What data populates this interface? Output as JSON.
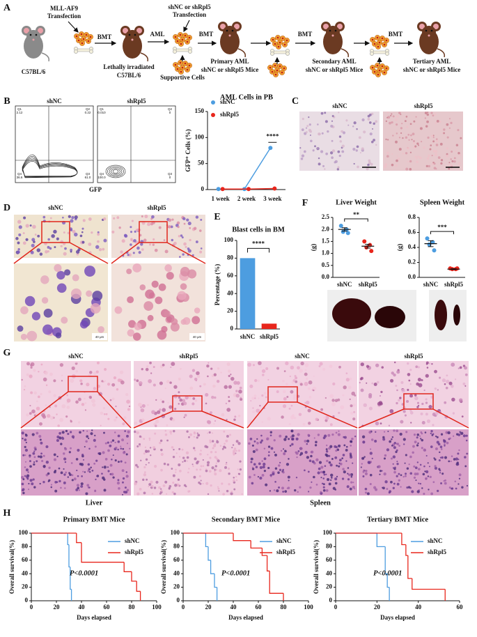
{
  "panel_labels": [
    "A",
    "B",
    "C",
    "D",
    "E",
    "F",
    "G",
    "H"
  ],
  "schematic": {
    "transfection1": [
      "MLL-AF9",
      "Transfection"
    ],
    "mouse1": "C57BL/6",
    "bmt1": "BMT",
    "mouse2": [
      "Lethally irradiated",
      "C57BL/6"
    ],
    "aml": "AML",
    "transfection2": [
      "shNC or shRpl5",
      "Transfection"
    ],
    "supportive": "Supportive Cells",
    "bmt2": "BMT",
    "primary": [
      "Primary AML",
      "shNC or shRpl5 Mice"
    ],
    "bmt3": "BMT",
    "secondary": [
      "Secondary AML",
      "shNC or shRpl5 Mice"
    ],
    "bmt4": "BMT",
    "tertiary": [
      "Tertiary AML",
      "shNC or shRpl5 Mice"
    ]
  },
  "flow": {
    "x_label": "GFP",
    "groups": [
      {
        "name": "shNC",
        "quadrants": [
          "Q1",
          "2.12",
          "Q2",
          "0.22",
          "Q4",
          "36.6",
          "Q3",
          "61.0"
        ]
      },
      {
        "name": "shRpl5",
        "quadrants": [
          "Q1",
          "0.010",
          "Q2",
          "0",
          "Q4",
          "100.0",
          "Q3",
          "0"
        ]
      }
    ]
  },
  "images": {
    "C": [
      "shNC",
      "shRpl5"
    ],
    "D": [
      "shNC",
      "shRpl5"
    ],
    "scale": "40 μm",
    "G": [
      "shNC",
      "shRpl5",
      "shNC",
      "shRpl5"
    ],
    "tissues": [
      "Liver",
      "Spleen"
    ]
  },
  "chart_data": [
    {
      "type": "line",
      "title": "AML Cells in PB",
      "y_label": "GFP⁺ Cells (%)",
      "categories": [
        "1 week",
        "2 week",
        "3 week"
      ],
      "series": [
        {
          "name": "shNC",
          "color": "#4d9de0",
          "values": [
            1,
            1,
            80
          ]
        },
        {
          "name": "shRpl5",
          "color": "#e8261c",
          "values": [
            1,
            1,
            2
          ]
        }
      ],
      "ylim": [
        0,
        150
      ],
      "yticks": [
        0,
        50,
        100,
        150
      ],
      "annotation": "****"
    },
    {
      "type": "bar",
      "title": "Blast cells in BM",
      "y_label": "Percentage (%)",
      "categories": [
        "shNC",
        "shRpl5"
      ],
      "values": [
        80,
        6
      ],
      "colors": [
        "#4d9de0",
        "#e8261c"
      ],
      "ylim": [
        0,
        100
      ],
      "yticks": [
        0,
        20,
        40,
        60,
        80,
        100
      ],
      "annotation": "****"
    },
    {
      "type": "dot",
      "title": "Liver Weight",
      "y_label": "(g)",
      "categories": [
        "shNC",
        "shRpl5"
      ],
      "colors": [
        "#4d9de0",
        "#e8261c"
      ],
      "points": [
        [
          2.15,
          2.0,
          1.9,
          1.85
        ],
        [
          1.5,
          1.35,
          1.25,
          1.1
        ]
      ],
      "means": [
        2.0,
        1.3
      ],
      "errors": [
        0.07,
        0.08
      ],
      "ylim": [
        0,
        2.5
      ],
      "yticks": [
        {
          "value": 0,
          "label": "0.0"
        },
        0.5,
        {
          "value": 1,
          "label": "1.0"
        },
        1.5,
        {
          "value": 2,
          "label": "2.0"
        },
        2.5
      ],
      "annotation": "**"
    },
    {
      "type": "dot",
      "title": "Spleen Weight",
      "y_label": "(g)",
      "categories": [
        "shNC",
        "shRpl5"
      ],
      "colors": [
        "#4d9de0",
        "#e8261c"
      ],
      "points": [
        [
          0.52,
          0.47,
          0.44,
          0.36
        ],
        [
          0.12,
          0.11,
          0.11,
          0.12
        ]
      ],
      "means": [
        0.45,
        0.11
      ],
      "errors": [
        0.04,
        0.005
      ],
      "ylim": [
        0,
        0.8
      ],
      "yticks": [
        {
          "value": 0,
          "label": "0.0"
        },
        0.2,
        0.4,
        0.6,
        0.8
      ],
      "annotation": "***"
    },
    {
      "type": "step",
      "title": "Primary BMT Mice",
      "x_label": "Days elapsed",
      "y_label": "Overall survival(%)",
      "xlim": [
        0,
        100
      ],
      "xticks": [
        0,
        20,
        40,
        60,
        80,
        100
      ],
      "ylim": [
        0,
        100
      ],
      "yticks": [
        0,
        20,
        40,
        60,
        80,
        100
      ],
      "series": [
        {
          "name": "shNC",
          "color": "#4d9de0",
          "x": [
            0,
            29,
            30,
            31,
            32
          ],
          "values": [
            100,
            83,
            50,
            17,
            0
          ]
        },
        {
          "name": "shRpl5",
          "color": "#e8261c",
          "x": [
            0,
            36,
            40,
            74,
            80,
            84,
            87
          ],
          "values": [
            100,
            86,
            57,
            43,
            29,
            14,
            0
          ]
        }
      ],
      "annotation": "P<0.0001"
    },
    {
      "type": "step",
      "title": "Secondary BMT Mice",
      "x_label": "Days elapsed",
      "y_label": "Overall survival(%)",
      "xlim": [
        0,
        100
      ],
      "xticks": [
        0,
        20,
        40,
        60,
        80,
        100
      ],
      "ylim": [
        0,
        100
      ],
      "yticks": [
        0,
        20,
        40,
        60,
        80,
        100
      ],
      "series": [
        {
          "name": "shNC",
          "color": "#4d9de0",
          "x": [
            0,
            18,
            20,
            22,
            25,
            27
          ],
          "values": [
            100,
            80,
            60,
            40,
            20,
            0
          ]
        },
        {
          "name": "shRpl5",
          "color": "#e8261c",
          "x": [
            0,
            40,
            54,
            63,
            67,
            69,
            80
          ],
          "values": [
            100,
            89,
            78,
            67,
            44,
            11,
            0
          ]
        }
      ],
      "annotation": "P<0.0001"
    },
    {
      "type": "step",
      "title": "Tertiary BMT Mice",
      "x_label": "Days elapsed",
      "y_label": "Overall survival(%)",
      "xlim": [
        0,
        60
      ],
      "xticks": [
        0,
        20,
        40,
        60
      ],
      "ylim": [
        0,
        100
      ],
      "yticks": [
        0,
        20,
        40,
        60,
        80,
        100
      ],
      "series": [
        {
          "name": "shNC",
          "color": "#4d9de0",
          "x": [
            0,
            20,
            24,
            25,
            26
          ],
          "values": [
            100,
            80,
            40,
            20,
            0
          ]
        },
        {
          "name": "shRpl5",
          "color": "#e8261c",
          "x": [
            0,
            32,
            34,
            35,
            37,
            53
          ],
          "values": [
            100,
            83,
            67,
            33,
            17,
            0
          ]
        }
      ],
      "annotation": "P<0.0001"
    }
  ]
}
